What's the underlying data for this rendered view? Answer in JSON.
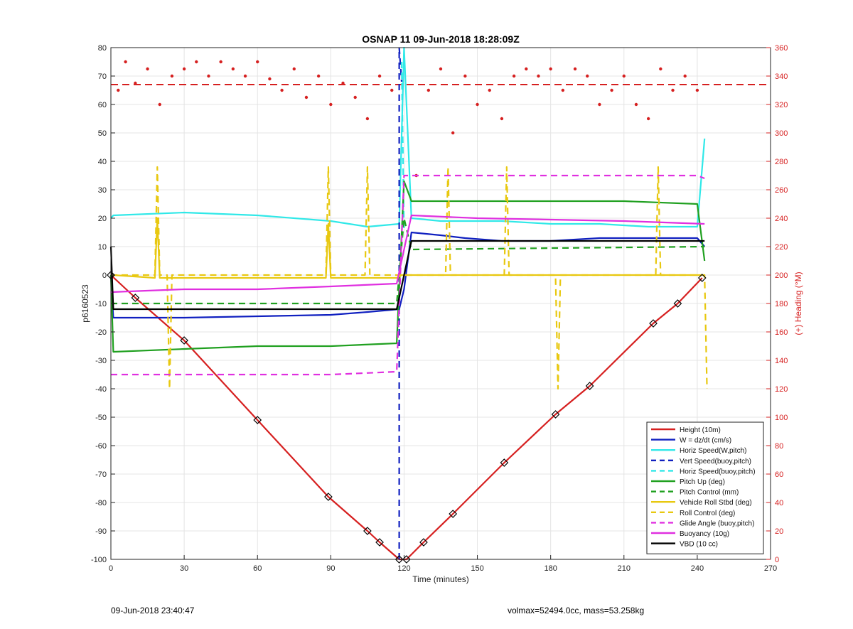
{
  "chart_data": {
    "type": "line",
    "title": "OSNAP 11 09-Jun-2018 18:28:09Z",
    "xlabel": "Time (minutes)",
    "ylabel_left": "p6160523",
    "ylabel_right": "(+) Heading (°M)",
    "xlim": [
      0,
      270
    ],
    "ylim_left": [
      -100,
      80
    ],
    "ylim_right": [
      0,
      360
    ],
    "xticks": [
      0,
      30,
      60,
      90,
      120,
      150,
      180,
      210,
      240,
      270
    ],
    "yticks_left": [
      -100,
      -90,
      -80,
      -70,
      -60,
      -50,
      -40,
      -30,
      -20,
      -10,
      0,
      10,
      20,
      30,
      40,
      50,
      60,
      70,
      80
    ],
    "yticks_right": [
      0,
      20,
      40,
      60,
      80,
      100,
      120,
      140,
      160,
      180,
      200,
      220,
      240,
      260,
      280,
      300,
      320,
      340,
      360
    ],
    "grid": true,
    "legend_position": "bottom-right",
    "series": [
      {
        "name": "Height (10m)",
        "color": "#d62020",
        "style": "solid",
        "x": [
          0,
          10,
          30,
          60,
          89,
          105,
          110,
          118,
          121,
          128,
          140,
          161,
          182,
          196,
          222,
          232,
          242
        ],
        "y": [
          0,
          -8,
          -23,
          -51,
          -78,
          -90,
          -94,
          -100,
          -100,
          -94,
          -84,
          -66,
          -49,
          -39,
          -17,
          -10,
          -1
        ]
      },
      {
        "name": "W = dz/dt (cm/s)",
        "color": "#1020c0",
        "style": "solid",
        "x": [
          0,
          1,
          10,
          30,
          60,
          90,
          105,
          118,
          120,
          123,
          135,
          145,
          160,
          180,
          200,
          220,
          240,
          243
        ],
        "y": [
          0,
          -15,
          -15,
          -15,
          -14.5,
          -14,
          -13,
          -12,
          -5,
          15,
          14,
          13,
          12,
          12,
          13,
          13,
          13,
          10
        ]
      },
      {
        "name": "Horiz Speed(W,pitch)",
        "color": "#30e8e8",
        "style": "solid",
        "x": [
          0,
          1,
          30,
          60,
          90,
          105,
          118,
          120,
          123,
          135,
          160,
          180,
          200,
          220,
          240,
          243
        ],
        "y": [
          20,
          21,
          22,
          21,
          19,
          17,
          18,
          80,
          20,
          19,
          19,
          18,
          18,
          17,
          17,
          48
        ]
      },
      {
        "name": "Vert Speed(buoy,pitch)",
        "color": "#1020c0",
        "style": "dashed",
        "x": [
          118,
          118,
          119
        ],
        "y": [
          -100,
          80,
          68
        ]
      },
      {
        "name": "Horiz Speed(buoy,pitch)",
        "color": "#30e8e8",
        "style": "dashed",
        "x": [
          119,
          120
        ],
        "y": [
          75,
          15
        ]
      },
      {
        "name": "Pitch Up (deg)",
        "color": "#20a020",
        "style": "solid",
        "x": [
          0,
          1,
          30,
          60,
          90,
          117,
          120,
          123,
          145,
          180,
          210,
          240,
          243
        ],
        "y": [
          0,
          -27,
          -26,
          -25,
          -25,
          -24,
          33,
          26,
          26,
          26,
          26,
          25,
          5
        ]
      },
      {
        "name": "Pitch Control (mm)",
        "color": "#20a020",
        "style": "dashed",
        "x": [
          0,
          117,
          120,
          123,
          243
        ],
        "y": [
          -10,
          -10,
          20,
          9,
          10
        ]
      },
      {
        "name": "Vehicle Roll Stbd (deg)",
        "color": "#e8c810",
        "style": "solid",
        "x": [
          0,
          1,
          18,
          19,
          20,
          60,
          88,
          89,
          90,
          117,
          119,
          120,
          160,
          180,
          220,
          242
        ],
        "y": [
          0,
          0,
          -1,
          20,
          -1,
          -1,
          -1,
          18,
          -1,
          -1,
          0,
          0,
          0,
          0,
          0,
          0
        ]
      },
      {
        "name": "Roll Control (deg)",
        "color": "#e8c810",
        "style": "dashed",
        "x": [
          0,
          18,
          19,
          20,
          23,
          24,
          25,
          88,
          89,
          90,
          104,
          105,
          106,
          120,
          137,
          138,
          139,
          161,
          162,
          163,
          182,
          183,
          184,
          223,
          224,
          225,
          243,
          244
        ],
        "y": [
          0,
          0,
          38,
          0,
          0,
          -40,
          0,
          0,
          38,
          0,
          0,
          38,
          0,
          0,
          0,
          38,
          0,
          0,
          38,
          0,
          0,
          -40,
          0,
          0,
          38,
          0,
          0,
          -40
        ]
      },
      {
        "name": "Glide Angle (buoy,pitch)",
        "color": "#e030e0",
        "style": "dashed",
        "x": [
          0,
          30,
          60,
          90,
          117,
          120,
          150,
          180,
          210,
          240,
          243
        ],
        "y": [
          -35,
          -35,
          -35,
          -35,
          -34,
          35,
          35,
          35,
          35,
          35,
          34
        ]
      },
      {
        "name": "Buoyancy (10g)",
        "color": "#e030e0",
        "style": "solid",
        "x": [
          0,
          30,
          60,
          90,
          117,
          123,
          150,
          180,
          210,
          243
        ],
        "y": [
          -6,
          -5,
          -5,
          -4,
          -3,
          21,
          20,
          19.5,
          19,
          18
        ]
      },
      {
        "name": "VBD (10 cc)",
        "color": "#000000",
        "style": "solid",
        "x": [
          0,
          1,
          30,
          60,
          90,
          117,
          123,
          150,
          180,
          210,
          243
        ],
        "y": [
          10,
          -12,
          -12,
          -12,
          -12,
          -12,
          12,
          12,
          12,
          12,
          12
        ]
      }
    ],
    "heading": {
      "color": "#d62020",
      "reference": 334,
      "x": [
        3,
        6,
        10,
        15,
        20,
        25,
        30,
        35,
        40,
        45,
        50,
        55,
        60,
        65,
        70,
        75,
        80,
        85,
        90,
        95,
        100,
        105,
        110,
        115,
        125,
        130,
        135,
        140,
        145,
        150,
        155,
        160,
        165,
        170,
        175,
        180,
        185,
        190,
        195,
        200,
        205,
        210,
        215,
        220,
        225,
        230,
        235,
        240
      ],
      "y": [
        330,
        350,
        335,
        345,
        320,
        340,
        345,
        350,
        340,
        350,
        345,
        340,
        350,
        338,
        330,
        345,
        325,
        340,
        320,
        335,
        325,
        310,
        340,
        330,
        270,
        330,
        345,
        300,
        340,
        320,
        330,
        310,
        340,
        345,
        340,
        345,
        330,
        345,
        340,
        320,
        330,
        340,
        320,
        310,
        345,
        330,
        340,
        330
      ]
    }
  },
  "footer": {
    "timestamp": "09-Jun-2018 23:40:47",
    "stats": "volmax=52494.0cc, mass=53.258kg"
  }
}
